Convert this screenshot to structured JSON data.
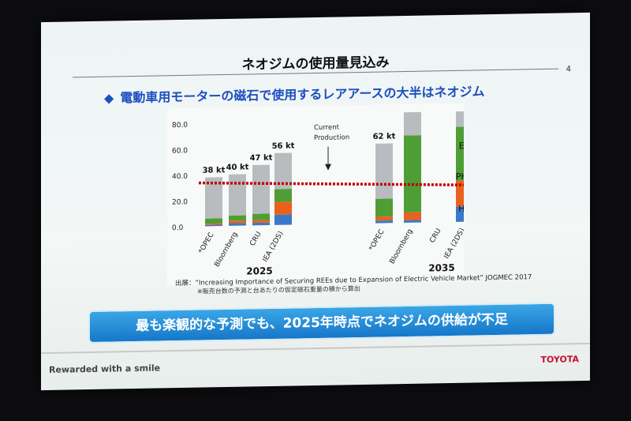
{
  "slide": {
    "title": "ネオジムの使用量見込み",
    "page_number": "4",
    "subtitle": "電動車用モーターの磁石で使用するレアアースの大半はネオジム",
    "source_line1": "出展：“Increasing Importance of Securing REEs due to Expansion of Electric Vehicle Market” JOGMEC 2017",
    "source_line2": "※販売台数の予測と台あたりの仮定磁石重量の積から算出",
    "banner": "最も楽観的な予測でも、2025年時点でネオジムの供給が不足",
    "footer_left": "Rewarded with a smile",
    "footer_right": "TOYOTA"
  },
  "chart_data": {
    "type": "bar",
    "stacked": true,
    "ylim": [
      0,
      80
    ],
    "yticks": [
      "0.0",
      "20.0",
      "40.0",
      "60.0",
      "80.0"
    ],
    "groups": [
      "2025",
      "2035"
    ],
    "categories": [
      "*OPEC",
      "Bloomberg",
      "CRU",
      "IEA (2DS)",
      "*OPEC",
      "Bloomberg",
      "CRU",
      "IEA (2DS)"
    ],
    "group_of_category": [
      0,
      0,
      0,
      0,
      1,
      1,
      1,
      1
    ],
    "total_labels": [
      "38 kt",
      "40 kt",
      "47 kt",
      "56 kt",
      "62 kt",
      "",
      "",
      ""
    ],
    "series": [
      {
        "name": "HV",
        "color": "#3a78c9",
        "values": [
          1,
          2,
          2,
          8,
          2,
          2,
          0,
          12
        ]
      },
      {
        "name": "PHV",
        "color": "#e8621e",
        "values": [
          1,
          2,
          2,
          10,
          3,
          6,
          0,
          20
        ]
      },
      {
        "name": "EV",
        "color": "#4e9e35",
        "values": [
          4,
          4,
          5,
          10,
          14,
          60,
          0,
          42
        ]
      },
      {
        "name": "",
        "color": "#b9bcbf",
        "values": [
          32,
          32,
          38,
          28,
          43,
          18,
          0,
          12
        ]
      }
    ],
    "series_labels": [
      "EV",
      "PHV",
      "HV"
    ],
    "reference_line": {
      "label": "Current Production",
      "value": 32,
      "color": "#c00000"
    }
  }
}
